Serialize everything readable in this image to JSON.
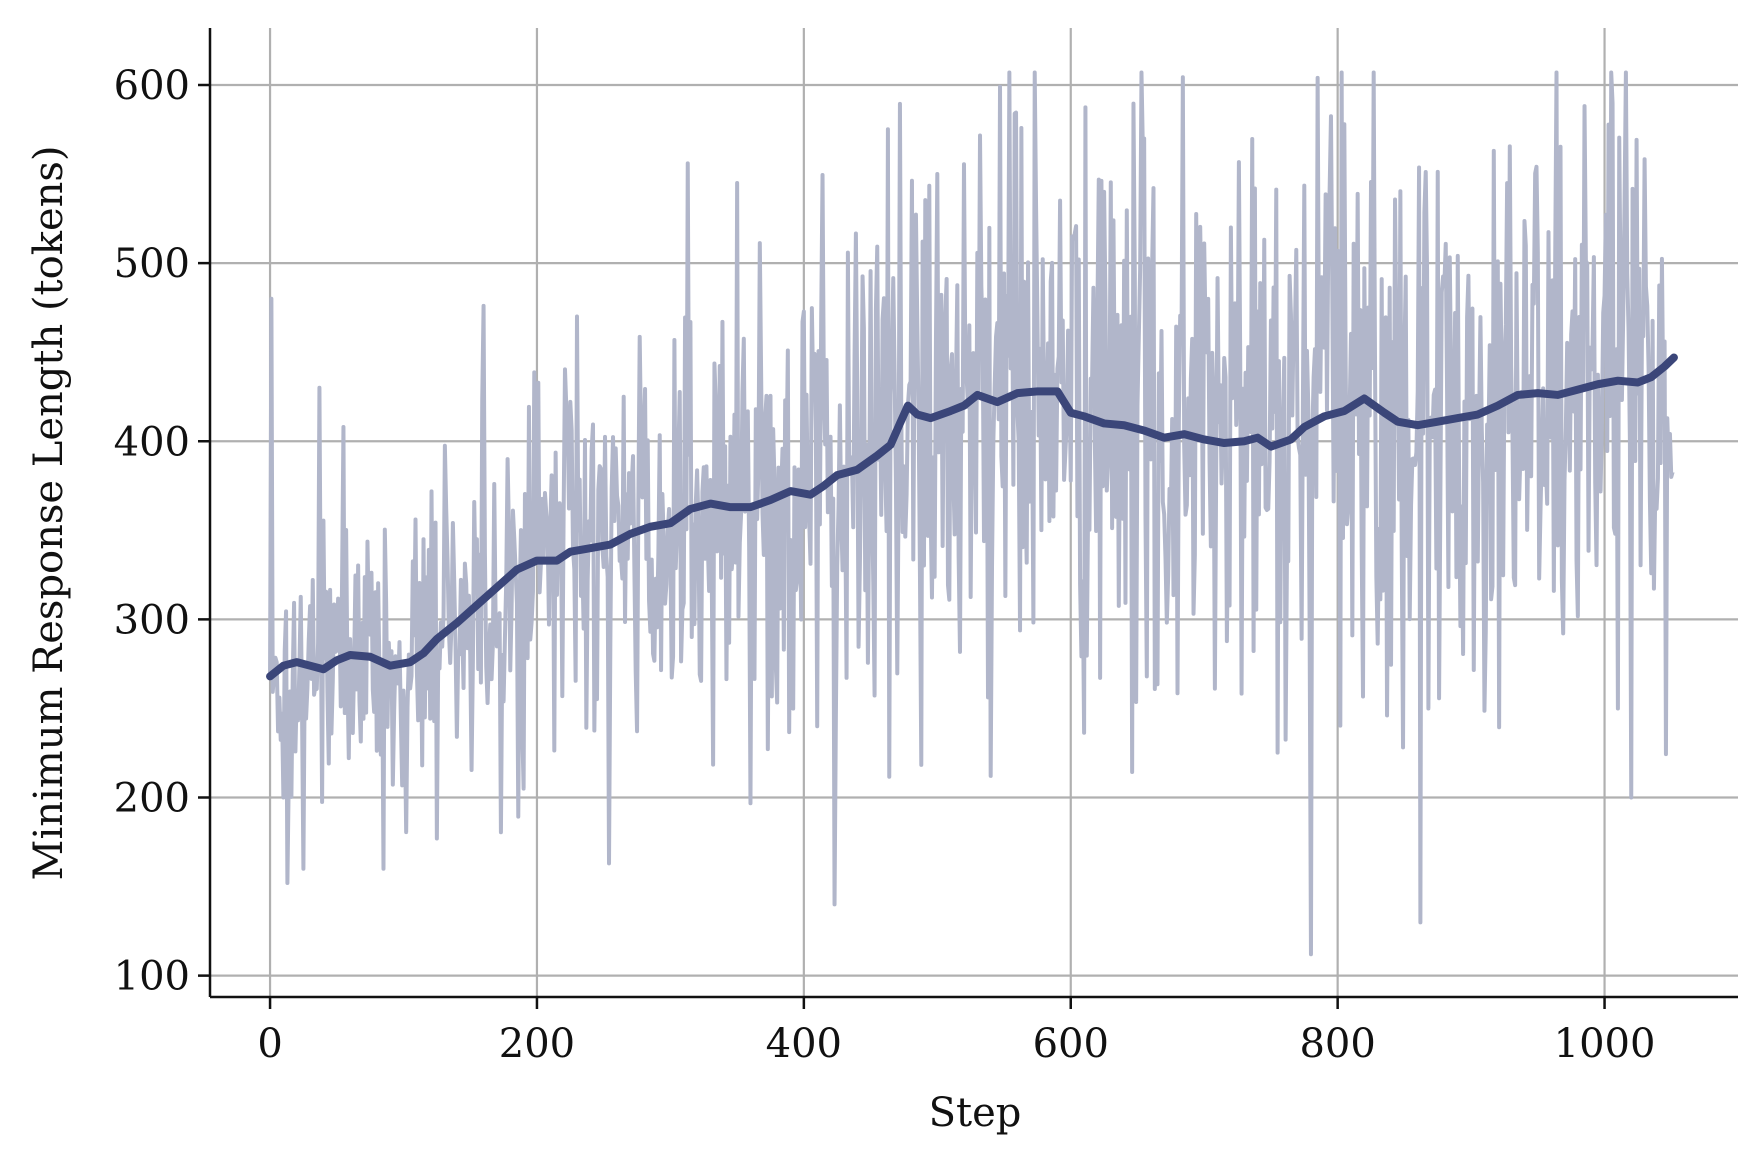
{
  "chart_data": {
    "type": "line",
    "title": "",
    "xlabel": "Step",
    "ylabel": "Minimum Response Length (tokens)",
    "xlim": [
      -45,
      1100
    ],
    "ylim": [
      88,
      632
    ],
    "xticks": [
      0,
      200,
      400,
      600,
      800,
      1000
    ],
    "yticks": [
      100,
      200,
      300,
      400,
      500,
      600
    ],
    "grid": true,
    "legend": "none",
    "colors": {
      "raw": "#b1b6ca",
      "smoothed": "#3b4679",
      "grid": "#b0b0b0",
      "axis": "#111111"
    },
    "series": [
      {
        "role": "raw",
        "x_start": 0,
        "x_step": 1,
        "count": 1052,
        "min": 112,
        "max": 607,
        "anchors": [
          [
            0,
            270
          ],
          [
            1,
            480
          ],
          [
            10,
            200
          ],
          [
            13,
            152
          ],
          [
            25,
            160
          ],
          [
            37,
            430
          ],
          [
            55,
            408
          ],
          [
            85,
            160
          ],
          [
            115,
            345
          ],
          [
            160,
            476
          ],
          [
            190,
            205
          ],
          [
            230,
            470
          ],
          [
            254,
            163
          ],
          [
            313,
            556
          ],
          [
            350,
            545
          ],
          [
            410,
            240
          ],
          [
            500,
            550
          ],
          [
            547,
            599
          ],
          [
            558,
            584
          ],
          [
            625,
            540
          ],
          [
            655,
            570
          ],
          [
            720,
            520
          ],
          [
            780,
            112
          ],
          [
            785,
            604
          ],
          [
            805,
            578
          ],
          [
            868,
            250
          ],
          [
            1005,
            607
          ],
          [
            1010,
            250
          ],
          [
            1020,
            200
          ],
          [
            1050,
            380
          ]
        ]
      },
      {
        "role": "smoothed",
        "points": [
          [
            0,
            268
          ],
          [
            10,
            274
          ],
          [
            20,
            276
          ],
          [
            30,
            274
          ],
          [
            40,
            272
          ],
          [
            50,
            277
          ],
          [
            60,
            280
          ],
          [
            75,
            279
          ],
          [
            90,
            274
          ],
          [
            105,
            276
          ],
          [
            115,
            281
          ],
          [
            125,
            289
          ],
          [
            140,
            298
          ],
          [
            155,
            308
          ],
          [
            170,
            318
          ],
          [
            185,
            328
          ],
          [
            200,
            333
          ],
          [
            215,
            333
          ],
          [
            225,
            338
          ],
          [
            240,
            340
          ],
          [
            255,
            342
          ],
          [
            270,
            348
          ],
          [
            285,
            352
          ],
          [
            300,
            354
          ],
          [
            315,
            362
          ],
          [
            330,
            365
          ],
          [
            345,
            363
          ],
          [
            360,
            363
          ],
          [
            375,
            367
          ],
          [
            390,
            372
          ],
          [
            405,
            370
          ],
          [
            415,
            375
          ],
          [
            425,
            381
          ],
          [
            440,
            384
          ],
          [
            455,
            392
          ],
          [
            465,
            398
          ],
          [
            472,
            410
          ],
          [
            478,
            420
          ],
          [
            485,
            415
          ],
          [
            495,
            413
          ],
          [
            510,
            417
          ],
          [
            520,
            420
          ],
          [
            530,
            426
          ],
          [
            545,
            422
          ],
          [
            560,
            427
          ],
          [
            575,
            428
          ],
          [
            590,
            428
          ],
          [
            600,
            416
          ],
          [
            610,
            414
          ],
          [
            625,
            410
          ],
          [
            640,
            409
          ],
          [
            655,
            406
          ],
          [
            670,
            402
          ],
          [
            685,
            404
          ],
          [
            700,
            401
          ],
          [
            715,
            399
          ],
          [
            730,
            400
          ],
          [
            740,
            402
          ],
          [
            750,
            397
          ],
          [
            765,
            401
          ],
          [
            775,
            408
          ],
          [
            790,
            414
          ],
          [
            805,
            417
          ],
          [
            820,
            424
          ],
          [
            835,
            416
          ],
          [
            845,
            411
          ],
          [
            860,
            409
          ],
          [
            875,
            411
          ],
          [
            890,
            413
          ],
          [
            905,
            415
          ],
          [
            920,
            420
          ],
          [
            935,
            426
          ],
          [
            950,
            427
          ],
          [
            965,
            426
          ],
          [
            980,
            429
          ],
          [
            995,
            432
          ],
          [
            1010,
            434
          ],
          [
            1025,
            433
          ],
          [
            1035,
            436
          ],
          [
            1045,
            442
          ],
          [
            1052,
            447
          ]
        ]
      }
    ]
  }
}
